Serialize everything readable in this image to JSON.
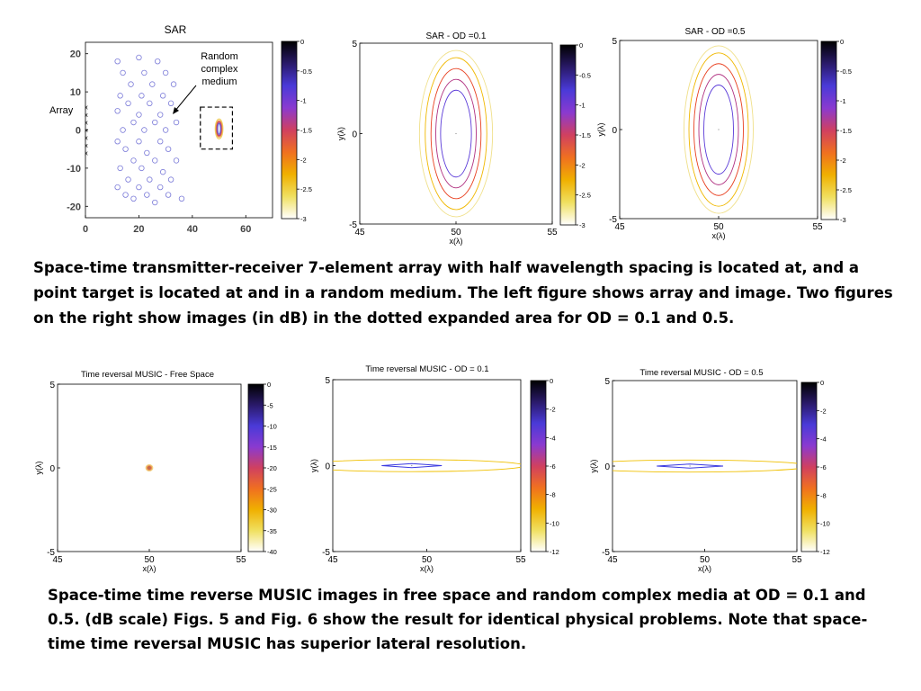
{
  "chart_data": [
    {
      "type": "scatter",
      "title": "SAR",
      "xlim": [
        0,
        70
      ],
      "ylim": [
        -23,
        23
      ],
      "x_ticks": [
        0,
        20,
        40,
        60
      ],
      "y_ticks": [
        20,
        10,
        0,
        -10,
        -20
      ],
      "scatterers": [
        [
          12,
          18
        ],
        [
          20,
          19
        ],
        [
          27,
          18
        ],
        [
          14,
          15
        ],
        [
          22,
          15
        ],
        [
          30,
          15
        ],
        [
          17,
          12
        ],
        [
          25,
          12
        ],
        [
          33,
          12
        ],
        [
          13,
          9
        ],
        [
          21,
          9
        ],
        [
          29,
          9
        ],
        [
          16,
          7
        ],
        [
          24,
          7
        ],
        [
          32,
          7
        ],
        [
          12,
          5
        ],
        [
          20,
          4
        ],
        [
          28,
          4
        ],
        [
          18,
          2
        ],
        [
          26,
          2
        ],
        [
          34,
          2
        ],
        [
          14,
          0
        ],
        [
          22,
          0
        ],
        [
          30,
          0
        ],
        [
          12,
          -3
        ],
        [
          20,
          -3
        ],
        [
          28,
          -3
        ],
        [
          15,
          -5
        ],
        [
          23,
          -6
        ],
        [
          31,
          -5
        ],
        [
          18,
          -8
        ],
        [
          26,
          -8
        ],
        [
          34,
          -8
        ],
        [
          13,
          -10
        ],
        [
          21,
          -10
        ],
        [
          29,
          -11
        ],
        [
          16,
          -13
        ],
        [
          24,
          -13
        ],
        [
          32,
          -13
        ],
        [
          12,
          -15
        ],
        [
          20,
          -15
        ],
        [
          28,
          -15
        ],
        [
          15,
          -17
        ],
        [
          23,
          -17
        ],
        [
          31,
          -17
        ],
        [
          36,
          -18
        ],
        [
          18,
          -18
        ],
        [
          26,
          -19
        ]
      ],
      "array_elements": [
        [
          0,
          6
        ],
        [
          0,
          4
        ],
        [
          0,
          2
        ],
        [
          0,
          0
        ],
        [
          0,
          -2
        ],
        [
          0,
          -4
        ],
        [
          0,
          -6
        ]
      ],
      "target_box": {
        "x": [
          43,
          55
        ],
        "y": [
          -5,
          6
        ]
      },
      "annotations": {
        "array": "Array",
        "medium": [
          "Random",
          "complex",
          "medium"
        ]
      },
      "colorbar": {
        "ticks": [
          "0",
          "-0.5",
          "-1",
          "-1.5",
          "-2",
          "-2.5",
          "-3"
        ]
      }
    },
    {
      "type": "contour",
      "title": "SAR - OD =0.1",
      "xlabel": "x(λ)",
      "ylabel": "y(λ)",
      "xlim": [
        45,
        55
      ],
      "ylim": [
        -5,
        5
      ],
      "x_ticks": [
        "45",
        "50",
        "55"
      ],
      "y_ticks": [
        "5",
        "0",
        "-5"
      ],
      "center": [
        50,
        0
      ],
      "contours": [
        {
          "level": -3,
          "color": "#f0e08a",
          "rx": 1.9,
          "ry": 4.6
        },
        {
          "level": -2.5,
          "color": "#f0b800",
          "rx": 1.6,
          "ry": 4.2
        },
        {
          "level": -2,
          "color": "#e84020",
          "rx": 1.3,
          "ry": 3.6
        },
        {
          "level": -1.5,
          "color": "#b03080",
          "rx": 1.05,
          "ry": 3.0
        },
        {
          "level": -1,
          "color": "#5a3ad8",
          "rx": 0.8,
          "ry": 2.4
        }
      ],
      "colorbar": {
        "ticks": [
          "0",
          "-0.5",
          "-1",
          "-1.5",
          "-2",
          "-2.5",
          "-3"
        ]
      }
    },
    {
      "type": "contour",
      "title": "SAR - OD =0.5",
      "xlabel": "x(λ)",
      "ylabel": "y(λ)",
      "xlim": [
        45,
        55
      ],
      "ylim": [
        -5,
        5
      ],
      "x_ticks": [
        "45",
        "50",
        "55"
      ],
      "y_ticks": [
        "5",
        "0",
        "-5"
      ],
      "center": [
        50,
        0
      ],
      "contours": [
        {
          "level": -3,
          "color": "#f0e08a",
          "rx": 1.75,
          "ry": 4.7
        },
        {
          "level": -2.5,
          "color": "#f0b800",
          "rx": 1.5,
          "ry": 4.3
        },
        {
          "level": -2,
          "color": "#e84020",
          "rx": 1.25,
          "ry": 3.7
        },
        {
          "level": -1.5,
          "color": "#b03080",
          "rx": 1.0,
          "ry": 3.1
        },
        {
          "level": -1,
          "color": "#5a3ad8",
          "rx": 0.75,
          "ry": 2.5
        }
      ],
      "colorbar": {
        "ticks": [
          "0",
          "-0.5",
          "-1",
          "-1.5",
          "-2",
          "-2.5",
          "-3"
        ]
      }
    },
    {
      "type": "contour",
      "title": "Time reversal MUSIC - Free Space",
      "xlabel": "x(λ)",
      "ylabel": "y(λ)",
      "xlim": [
        45,
        55
      ],
      "ylim": [
        -5,
        5
      ],
      "x_ticks": [
        "45",
        "50",
        "55"
      ],
      "y_ticks": [
        "5",
        "0",
        "-5"
      ],
      "center": [
        50,
        0
      ],
      "contours": [
        {
          "level": -40,
          "color": "#f0d080",
          "rx": 0.18,
          "ry": 0.18
        },
        {
          "level": -30,
          "color": "#e89050",
          "rx": 0.12,
          "ry": 0.12
        },
        {
          "level": -20,
          "color": "#d06040",
          "rx": 0.06,
          "ry": 0.06
        }
      ],
      "colorbar": {
        "ticks": [
          "0",
          "-5",
          "-10",
          "-15",
          "-20",
          "-25",
          "-30",
          "-35",
          "-40"
        ]
      }
    },
    {
      "type": "contour",
      "title": "Time reversal MUSIC - OD = 0.1",
      "xlabel": "x(λ)",
      "ylabel": "y(λ)",
      "xlim": [
        45,
        55
      ],
      "ylim": [
        -5,
        5
      ],
      "x_ticks": [
        "45",
        "50",
        "55"
      ],
      "y_ticks": [
        "5",
        "0",
        "-5"
      ],
      "center": [
        49.2,
        0
      ],
      "contours": [
        {
          "level": -12,
          "color": "#f0c000",
          "rx": 6.0,
          "ry": 0.35
        },
        {
          "level": -2,
          "color": "#3a3ae0",
          "rx": 1.6,
          "ry": 0.12
        }
      ],
      "colorbar": {
        "ticks": [
          "0",
          "-2",
          "-4",
          "-6",
          "-8",
          "-10",
          "-12"
        ]
      }
    },
    {
      "type": "contour",
      "title": "Time reversal MUSIC - OD = 0.5",
      "xlabel": "x(λ)",
      "ylabel": "y(λ)",
      "xlim": [
        45,
        55
      ],
      "ylim": [
        -5,
        5
      ],
      "x_ticks": [
        "45",
        "50",
        "55"
      ],
      "y_ticks": [
        "5",
        "0",
        "-5"
      ],
      "center": [
        49.2,
        0
      ],
      "contours": [
        {
          "level": -12,
          "color": "#f0c000",
          "rx": 6.5,
          "ry": 0.35
        },
        {
          "level": -2,
          "color": "#3a3ae0",
          "rx": 1.8,
          "ry": 0.12
        }
      ],
      "colorbar": {
        "ticks": [
          "0",
          "-2",
          "-4",
          "-6",
          "-8",
          "-10",
          "-12"
        ]
      }
    }
  ],
  "captions": {
    "top": "Space-time transmitter-receiver 7-element array with half wavelength spacing is located at, and a point target is located at  and in a random medium.  The left figure shows array and image. Two figures on the right show images (in dB) in the dotted expanded area for OD = 0.1 and 0.5.",
    "bottom": "Space-time time reverse MUSIC images in free space and random complex media at OD = 0.1 and 0.5. (dB scale)  Figs. 5 and Fig. 6 show the result for identical physical problems.  Note that space-time time reversal MUSIC has superior lateral resolution."
  },
  "colormap": [
    "#000000",
    "#2a1a6a",
    "#4a3ad8",
    "#8a3ad0",
    "#d04060",
    "#f07020",
    "#f0b000",
    "#f0e060",
    "#ffffff"
  ]
}
